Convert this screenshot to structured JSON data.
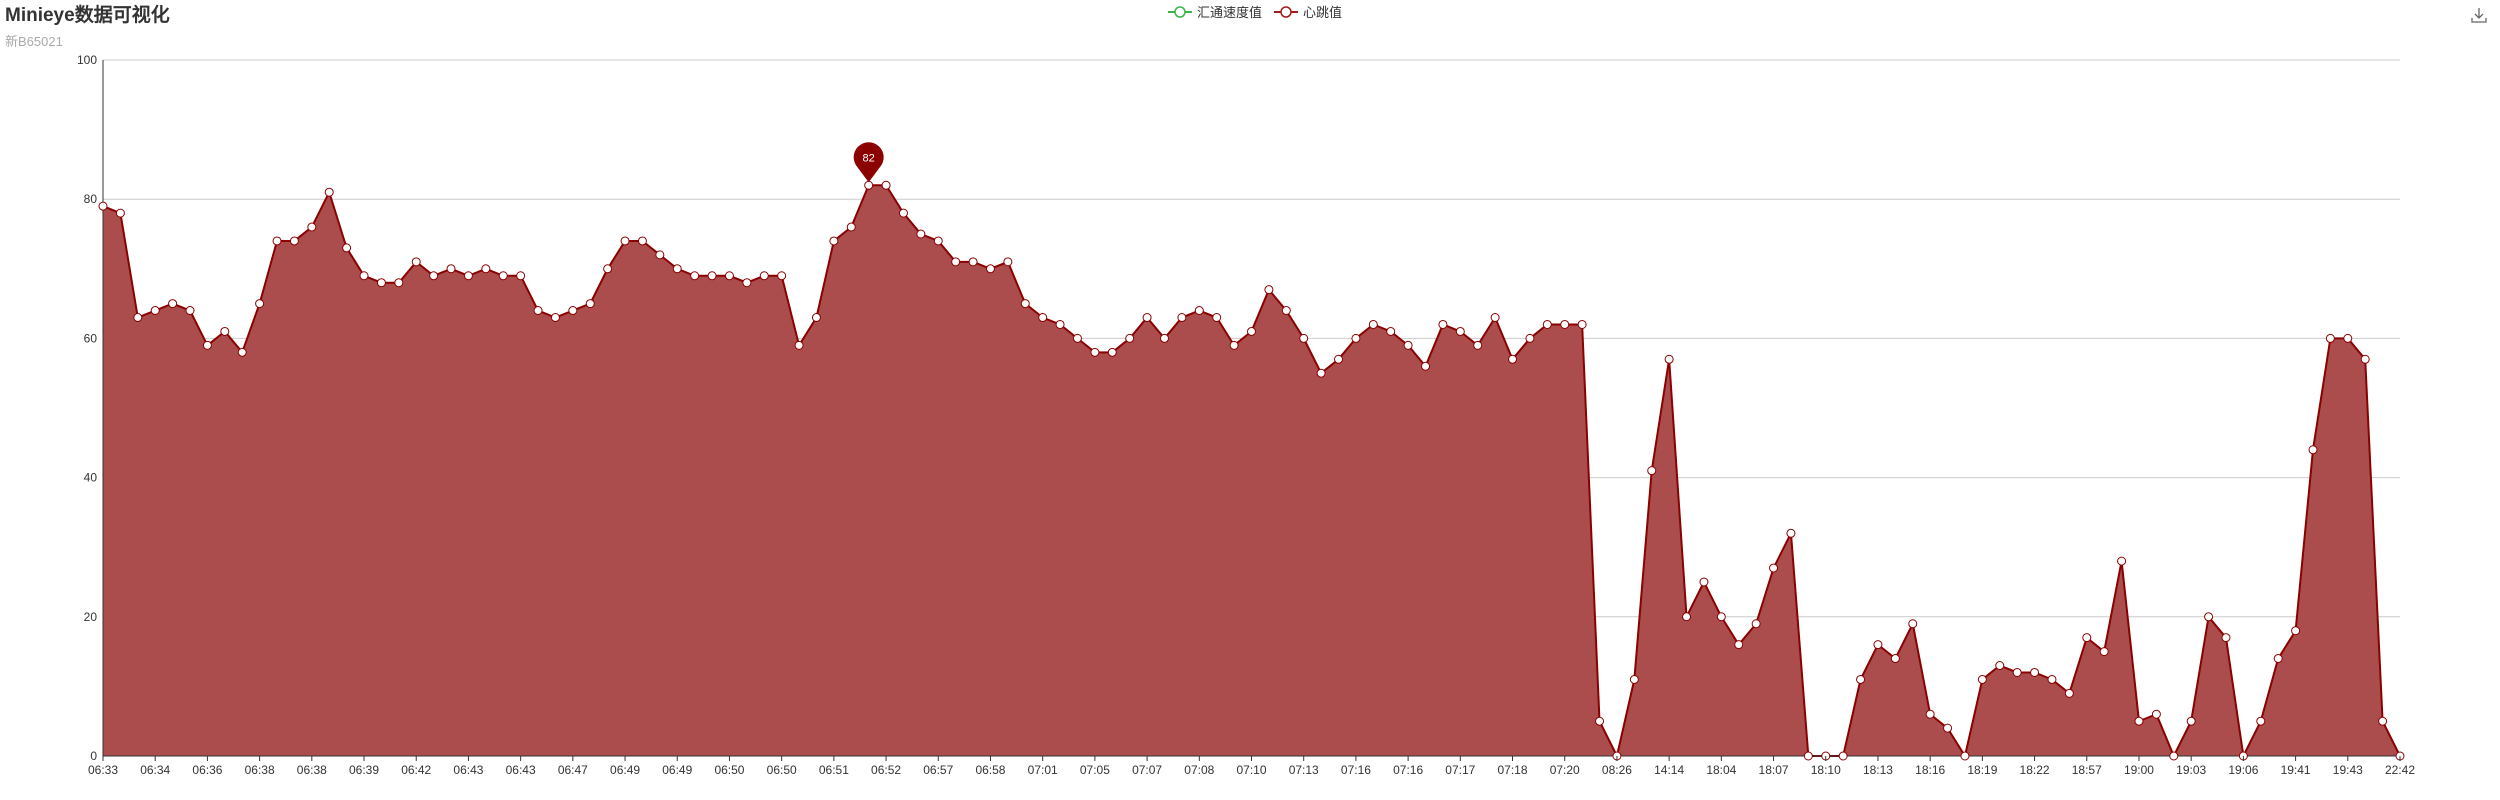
{
  "title": "Minieye数据可视化",
  "subtitle": "新B65021",
  "legend": [
    {
      "name": "汇通速度值",
      "color": "#3bb54a"
    },
    {
      "name": "心跳值",
      "color": "#a51b1b"
    }
  ],
  "toolbox": {
    "icon": "download-icon"
  },
  "colors": {
    "area": "#ab4d4d",
    "line": "#8b0000",
    "point_fill": "#ffffff",
    "mark": "#8b0000",
    "grid": "#cccccc",
    "axis": "#333333"
  },
  "chart_data": {
    "type": "area",
    "title": "Minieye数据可视化",
    "subtitle": "新B65021",
    "xlabel": "",
    "ylabel": "",
    "ylim": [
      0,
      100
    ],
    "yticks": [
      0,
      20,
      40,
      60,
      80,
      100
    ],
    "grid": true,
    "legend_position": "top-center",
    "x_tick_labels": [
      "06:33",
      "06:34",
      "06:36",
      "06:38",
      "06:38",
      "06:39",
      "06:42",
      "06:43",
      "06:43",
      "06:47",
      "06:49",
      "06:49",
      "06:50",
      "06:50",
      "06:51",
      "06:52",
      "06:57",
      "06:58",
      "07:01",
      "07:05",
      "07:07",
      "07:08",
      "07:10",
      "07:13",
      "07:16",
      "07:16",
      "07:17",
      "07:18",
      "07:20",
      "08:26",
      "14:14",
      "18:04",
      "18:07",
      "18:10",
      "18:13",
      "18:16",
      "18:19",
      "18:22",
      "18:57",
      "19:00",
      "19:03",
      "19:06",
      "19:41",
      "19:43",
      "22:42"
    ],
    "series": [
      {
        "name": "汇通速度值",
        "values": []
      },
      {
        "name": "心跳值",
        "values": [
          79,
          78,
          63,
          64,
          65,
          64,
          59,
          61,
          58,
          65,
          74,
          74,
          76,
          81,
          73,
          69,
          68,
          68,
          71,
          69,
          70,
          69,
          70,
          69,
          69,
          64,
          63,
          64,
          65,
          70,
          74,
          74,
          72,
          70,
          69,
          69,
          69,
          68,
          69,
          69,
          59,
          63,
          74,
          76,
          82,
          82,
          78,
          75,
          74,
          71,
          71,
          70,
          71,
          65,
          63,
          62,
          60,
          58,
          58,
          60,
          63,
          60,
          63,
          64,
          63,
          59,
          61,
          67,
          64,
          60,
          55,
          57,
          60,
          62,
          61,
          59,
          56,
          62,
          61,
          59,
          63,
          57,
          60,
          62,
          62,
          62,
          5,
          0,
          11,
          41,
          57,
          20,
          25,
          20,
          16,
          19,
          27,
          32,
          0,
          0,
          0,
          11,
          16,
          14,
          19,
          6,
          4,
          0,
          11,
          13,
          12,
          12,
          11,
          9,
          17,
          15,
          28,
          5,
          6,
          0,
          5,
          20,
          17,
          0,
          5,
          14,
          18,
          44,
          60,
          60,
          57,
          5,
          0
        ]
      }
    ],
    "mark_point": {
      "series": "心跳值",
      "label": "82",
      "value": 82,
      "index": 44
    }
  }
}
